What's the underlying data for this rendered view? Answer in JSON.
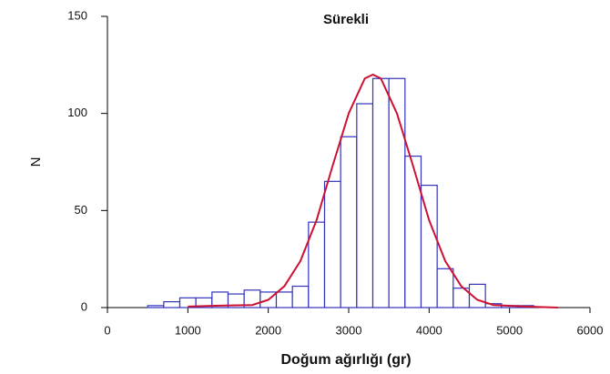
{
  "chart_data": {
    "type": "histogram",
    "title": "Sürekli",
    "xlabel": "Doğum ağırlığı (gr)",
    "ylabel": "N",
    "bins": [
      500,
      700,
      900,
      1100,
      1300,
      1500,
      1700,
      1900,
      2100,
      2300,
      2500,
      2700,
      2900,
      3100,
      3300,
      3500,
      3700,
      3900,
      4100,
      4300,
      4500,
      4700,
      4900,
      5100,
      5300
    ],
    "values": [
      1,
      3,
      5,
      5,
      8,
      7,
      9,
      8,
      8,
      11,
      44,
      65,
      88,
      105,
      118,
      118,
      78,
      63,
      20,
      10,
      12,
      2,
      1,
      1
    ],
    "color": "#3333bb",
    "curve": {
      "x": [
        1000,
        1400,
        1800,
        2000,
        2200,
        2400,
        2600,
        2800,
        3000,
        3200,
        3300,
        3400,
        3600,
        3800,
        4000,
        4200,
        4400,
        4600,
        4800,
        5200,
        5600
      ],
      "values": [
        0.5,
        1,
        1.3,
        4,
        11,
        24,
        45,
        73,
        100,
        118,
        120,
        118,
        100,
        73,
        45,
        24,
        11,
        4,
        1.3,
        0.5,
        0
      ],
      "color": "#cc1133"
    },
    "xlim": [
      0,
      6000
    ],
    "ylim": [
      0,
      150
    ],
    "xticks": [
      0,
      1000,
      2000,
      3000,
      4000,
      5000,
      6000
    ],
    "yticks": [
      0,
      50,
      100,
      150
    ]
  }
}
